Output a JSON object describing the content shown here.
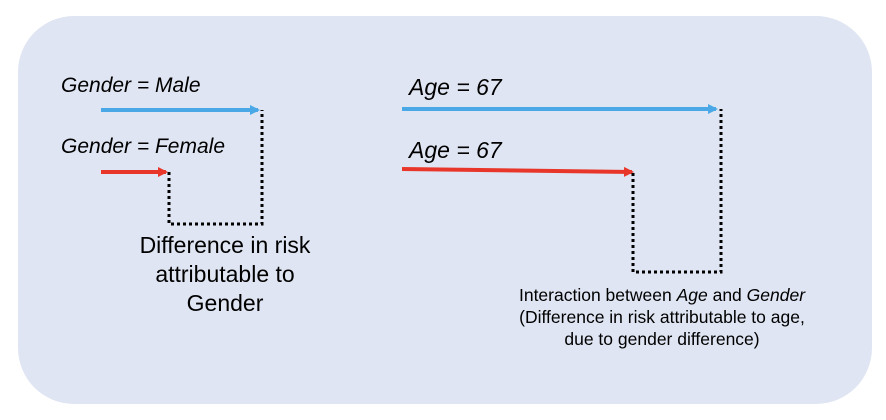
{
  "labels": {
    "gender_male": "Gender = Male",
    "gender_female": "Gender = Female",
    "age_first": "Age = 67",
    "age_second": "Age = 67"
  },
  "notes": {
    "gender_diff": {
      "line1": "Difference in risk",
      "line2": "attributable to",
      "line3": "Gender"
    },
    "interaction": {
      "line1_prefix": "Interaction between ",
      "line1_var1": "Age",
      "line1_mid": " and ",
      "line1_var2": "Gender",
      "line2": "(Difference in risk attributable to age,",
      "line3": "due to gender difference)"
    }
  },
  "colors": {
    "panel": "#dfe5f2",
    "male_arrow": "#4aa8e6",
    "female_arrow": "#e8372a",
    "dotted": "#000000"
  }
}
